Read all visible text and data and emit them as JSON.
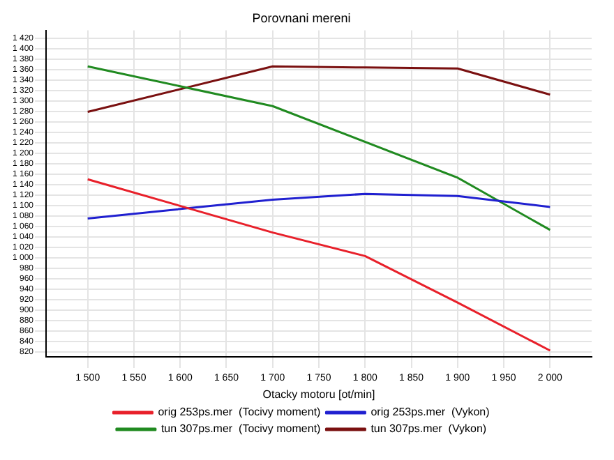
{
  "chart_data": {
    "type": "line",
    "title": "Porovnani mereni",
    "xlabel": "Otacky motoru [ot/min]",
    "xlim": [
      1455,
      2045
    ],
    "xticks": [
      {
        "value": 1500,
        "label": "1 500"
      },
      {
        "value": 1550,
        "label": "1 550"
      },
      {
        "value": 1600,
        "label": "1 600"
      },
      {
        "value": 1650,
        "label": "1 650"
      },
      {
        "value": 1700,
        "label": "1 700"
      },
      {
        "value": 1750,
        "label": "1 750"
      },
      {
        "value": 1800,
        "label": "1 800"
      },
      {
        "value": 1850,
        "label": "1 850"
      },
      {
        "value": 1900,
        "label": "1 900"
      },
      {
        "value": 1950,
        "label": "1 950"
      },
      {
        "value": 2000,
        "label": "2 000"
      }
    ],
    "ylim": [
      810,
      1435
    ],
    "yticks": [
      {
        "value": 820,
        "label": "820"
      },
      {
        "value": 840,
        "label": "840"
      },
      {
        "value": 860,
        "label": "860"
      },
      {
        "value": 880,
        "label": "880"
      },
      {
        "value": 900,
        "label": "900"
      },
      {
        "value": 920,
        "label": "920"
      },
      {
        "value": 940,
        "label": "940"
      },
      {
        "value": 960,
        "label": "960"
      },
      {
        "value": 980,
        "label": "980"
      },
      {
        "value": 1000,
        "label": "1 000"
      },
      {
        "value": 1020,
        "label": "1 020"
      },
      {
        "value": 1040,
        "label": "1 040"
      },
      {
        "value": 1060,
        "label": "1 060"
      },
      {
        "value": 1080,
        "label": "1 080"
      },
      {
        "value": 1100,
        "label": "1 100"
      },
      {
        "value": 1120,
        "label": "1 120"
      },
      {
        "value": 1140,
        "label": "1 140"
      },
      {
        "value": 1160,
        "label": "1 160"
      },
      {
        "value": 1180,
        "label": "1 180"
      },
      {
        "value": 1200,
        "label": "1 200"
      },
      {
        "value": 1220,
        "label": "1 220"
      },
      {
        "value": 1240,
        "label": "1 240"
      },
      {
        "value": 1260,
        "label": "1 260"
      },
      {
        "value": 1280,
        "label": "1 280"
      },
      {
        "value": 1300,
        "label": "1 300"
      },
      {
        "value": 1320,
        "label": "1 320"
      },
      {
        "value": 1340,
        "label": "1 340"
      },
      {
        "value": 1360,
        "label": "1 360"
      },
      {
        "value": 1380,
        "label": "1 380"
      },
      {
        "value": 1400,
        "label": "1 400"
      },
      {
        "value": 1420,
        "label": "1 420"
      }
    ],
    "grid": true,
    "legend": "bottom",
    "marker": "none",
    "line_style": "solid",
    "series": [
      {
        "name": "orig 253ps.mer  (Tocivy moment)",
        "color": "#e8202a",
        "x": [
          1500,
          1700,
          1800,
          1900,
          2000
        ],
        "values": [
          1150,
          1048,
          1003,
          914,
          822
        ]
      },
      {
        "name": "orig 253ps.mer  (Vykon)",
        "color": "#2020d0",
        "x": [
          1500,
          1700,
          1800,
          1900,
          2000
        ],
        "values": [
          1075,
          1111,
          1122,
          1118,
          1097
        ]
      },
      {
        "name": "tun 307ps.mer  (Tocivy moment)",
        "color": "#208a20",
        "x": [
          1500,
          1700,
          1900,
          2000
        ],
        "values": [
          1366,
          1290,
          1153,
          1053
        ]
      },
      {
        "name": "tun 307ps.mer  (Vykon)",
        "color": "#7a1010",
        "x": [
          1500,
          1700,
          1800,
          1900,
          2000
        ],
        "values": [
          1279,
          1366,
          1364,
          1362,
          1312
        ]
      }
    ]
  }
}
